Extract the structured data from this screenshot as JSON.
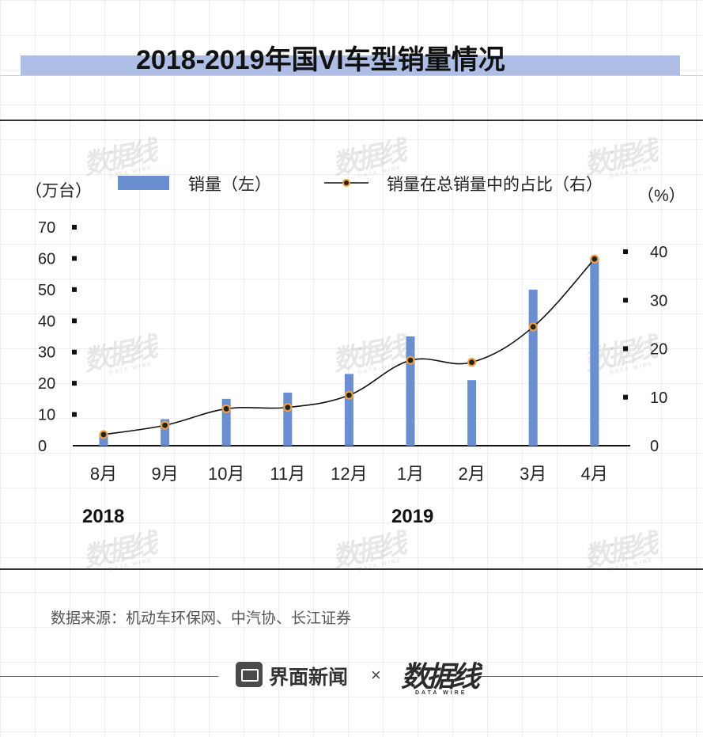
{
  "header": {
    "title": "2018-2019年国VI车型销量情况"
  },
  "chart_data": {
    "type": "bar+line",
    "categories": [
      "8月",
      "9月",
      "10月",
      "11月",
      "12月",
      "1月",
      "2月",
      "3月",
      "4月"
    ],
    "year_groups": [
      {
        "label": "2018",
        "start_index": 0
      },
      {
        "label": "2019",
        "start_index": 5
      }
    ],
    "series": [
      {
        "name": "销量（左）",
        "type": "bar",
        "axis": "left",
        "color": "#6a8fd0",
        "values": [
          3.5,
          8.5,
          15,
          17,
          23,
          35,
          21,
          50,
          60
        ]
      },
      {
        "name": "销量在总销量中的占比（右）",
        "type": "line",
        "axis": "right",
        "color": "#111111",
        "marker_fill": "#222222",
        "marker_ring": "#f0a040",
        "values": [
          2.3,
          4.2,
          7.6,
          7.9,
          10.4,
          17.6,
          17.2,
          24.5,
          38.5
        ]
      }
    ],
    "y_left": {
      "unit": "（万台）",
      "min": 0,
      "max": 70,
      "ticks": [
        0,
        10,
        20,
        30,
        40,
        50,
        60,
        70
      ]
    },
    "y_right": {
      "unit": "（%）",
      "min": 0,
      "max": 45,
      "ticks": [
        0,
        10,
        20,
        30,
        40
      ]
    },
    "legend_position": "top"
  },
  "footer": {
    "source": "数据来源：机动车环保网、中汽协、长江证券",
    "brand": "界面新闻",
    "times": "×",
    "datawire": "数据线",
    "datawire_sub": "DATA WIRE"
  },
  "watermark": {
    "text": "数据线",
    "sub": "DATA WIRE"
  }
}
